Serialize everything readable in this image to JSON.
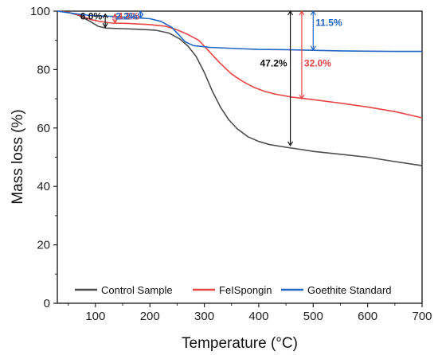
{
  "chart_data": {
    "type": "line",
    "xlabel": "Temperature (°C)",
    "ylabel": "Mass loss (%)",
    "xlim": [
      30,
      700
    ],
    "ylim": [
      0,
      100
    ],
    "xticks": [
      100,
      200,
      300,
      400,
      500,
      600,
      700
    ],
    "yticks": [
      0,
      20,
      40,
      60,
      80,
      100
    ],
    "legend_position": "bottom",
    "series": [
      {
        "name": "Control Sample",
        "color": "#4d4d4d",
        "points": [
          [
            30,
            100
          ],
          [
            50,
            99.6
          ],
          [
            70,
            98.5
          ],
          [
            90,
            96.5
          ],
          [
            105,
            94.8
          ],
          [
            120,
            94.2
          ],
          [
            150,
            94.0
          ],
          [
            180,
            93.8
          ],
          [
            210,
            93.5
          ],
          [
            235,
            92.5
          ],
          [
            255,
            90.5
          ],
          [
            270,
            88.0
          ],
          [
            285,
            84.5
          ],
          [
            300,
            79.0
          ],
          [
            315,
            72.5
          ],
          [
            330,
            67.0
          ],
          [
            345,
            62.8
          ],
          [
            360,
            59.8
          ],
          [
            380,
            57.0
          ],
          [
            400,
            55.4
          ],
          [
            420,
            54.3
          ],
          [
            450,
            53.4
          ],
          [
            480,
            52.6
          ],
          [
            500,
            52.0
          ],
          [
            550,
            51.0
          ],
          [
            600,
            50.0
          ],
          [
            650,
            48.5
          ],
          [
            700,
            47.1
          ]
        ]
      },
      {
        "name": "FeISpongin",
        "color": "#e84545",
        "points": [
          [
            30,
            100
          ],
          [
            50,
            99.6
          ],
          [
            70,
            98.6
          ],
          [
            90,
            97.2
          ],
          [
            110,
            96.4
          ],
          [
            130,
            95.9
          ],
          [
            160,
            95.8
          ],
          [
            200,
            95.4
          ],
          [
            230,
            94.8
          ],
          [
            250,
            93.6
          ],
          [
            270,
            92.0
          ],
          [
            290,
            90.0
          ],
          [
            310,
            86.0
          ],
          [
            330,
            82.0
          ],
          [
            350,
            78.5
          ],
          [
            370,
            76.0
          ],
          [
            390,
            74.0
          ],
          [
            410,
            72.6
          ],
          [
            430,
            71.6
          ],
          [
            460,
            70.6
          ],
          [
            500,
            69.7
          ],
          [
            550,
            68.5
          ],
          [
            600,
            67.2
          ],
          [
            650,
            65.6
          ],
          [
            700,
            63.5
          ]
        ]
      },
      {
        "name": "Goethite Standard",
        "color": "#2166c4",
        "points": [
          [
            30,
            100
          ],
          [
            60,
            99.2
          ],
          [
            90,
            98.5
          ],
          [
            130,
            98.2
          ],
          [
            170,
            97.8
          ],
          [
            200,
            97.4
          ],
          [
            220,
            96.5
          ],
          [
            240,
            94.5
          ],
          [
            255,
            91.5
          ],
          [
            265,
            89.5
          ],
          [
            280,
            88.2
          ],
          [
            310,
            87.6
          ],
          [
            360,
            87.2
          ],
          [
            400,
            86.9
          ],
          [
            450,
            86.8
          ],
          [
            500,
            86.6
          ],
          [
            550,
            86.4
          ],
          [
            600,
            86.3
          ],
          [
            650,
            86.2
          ],
          [
            700,
            86.2
          ]
        ]
      }
    ],
    "annotations": [
      {
        "text": "6.0%",
        "color": "#111111",
        "x": 118,
        "y_top": 99.0,
        "y_bottom": 94.5
      },
      {
        "text": "4.2%",
        "color": "#e84545",
        "x": 136,
        "y_top": 99.0,
        "y_bottom": 96.0
      },
      {
        "text": "2.2%",
        "color": "#2166c4",
        "x": 183,
        "y_top": 100.0,
        "y_bottom": 97.7
      },
      {
        "text": "47.2%",
        "color": "#111111",
        "x": 458,
        "y_top": 100.0,
        "y_bottom": 54.0
      },
      {
        "text": "32.0%",
        "color": "#e84545",
        "x": 479,
        "y_top": 100.0,
        "y_bottom": 70.0
      },
      {
        "text": "11.5%",
        "color": "#2166c4",
        "x": 500,
        "y_top": 100.0,
        "y_bottom": 86.7
      }
    ]
  }
}
